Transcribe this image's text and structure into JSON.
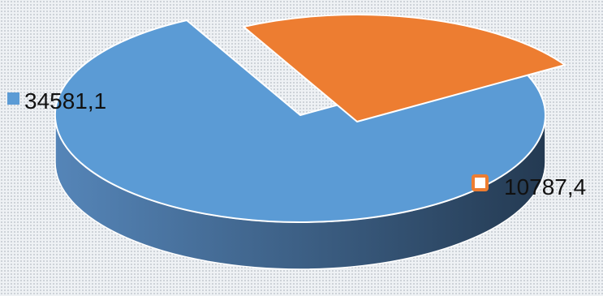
{
  "chart_data": {
    "type": "pie",
    "variant": "3d-exploded",
    "title": "",
    "slices": [
      {
        "value": 34581.1,
        "label": "34581,1",
        "color": "#5b9bd5",
        "side_color": "#2f4e6e"
      },
      {
        "value": 10787.4,
        "label": "10787,4",
        "color": "#ed7d31",
        "side_color": "#63300f"
      }
    ],
    "legend": "none",
    "data_labels": "outside-with-marker"
  }
}
